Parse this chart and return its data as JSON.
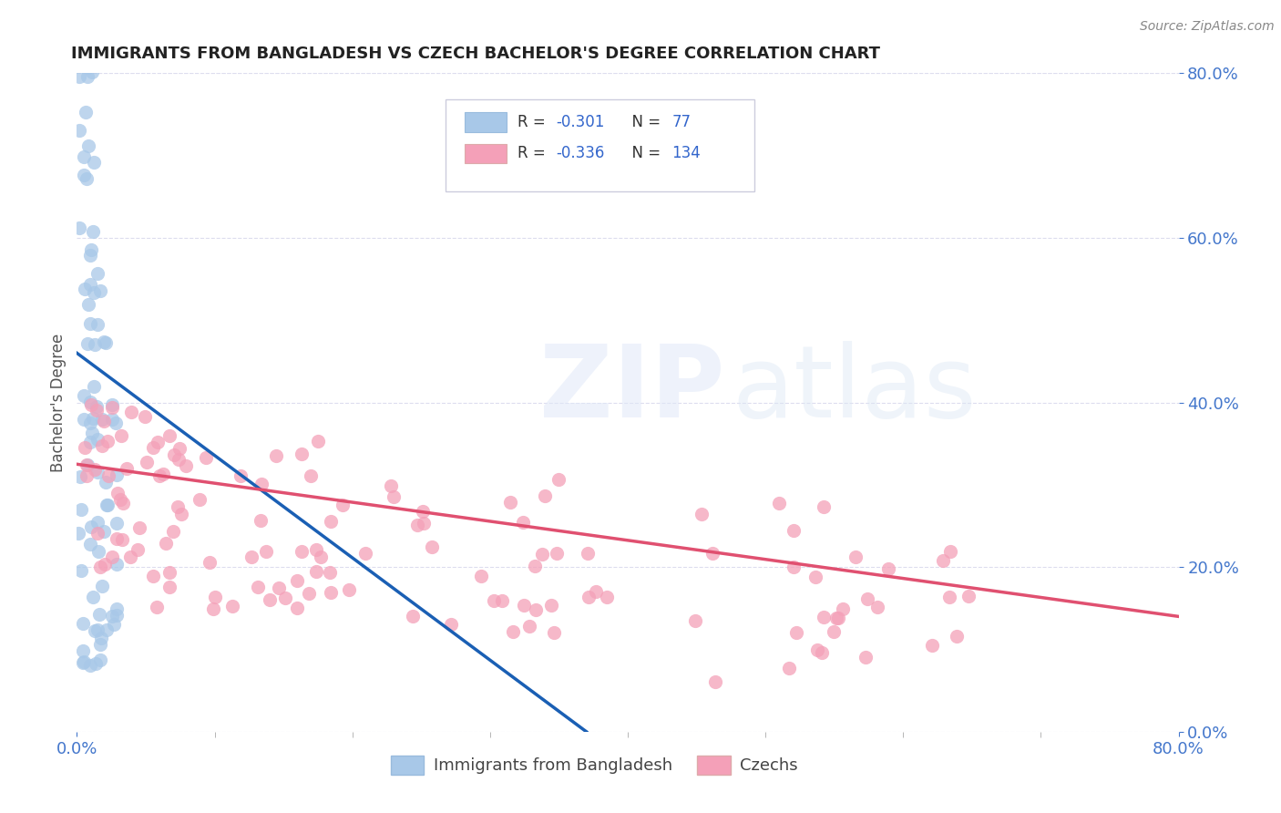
{
  "title": "IMMIGRANTS FROM BANGLADESH VS CZECH BACHELOR'S DEGREE CORRELATION CHART",
  "source": "Source: ZipAtlas.com",
  "ylabel": "Bachelor's Degree",
  "legend_labels": [
    "Immigrants from Bangladesh",
    "Czechs"
  ],
  "r_bangladesh": -0.301,
  "n_bangladesh": 77,
  "r_czech": -0.336,
  "n_czech": 134,
  "xlim": [
    0.0,
    0.8
  ],
  "ylim": [
    0.0,
    0.8
  ],
  "color_bangladesh": "#a8c8e8",
  "color_czech": "#f4a0b8",
  "line_color_bangladesh": "#1a5fb4",
  "line_color_czech": "#e05070",
  "dash_line_color": "#aaccee",
  "background_color": "#ffffff",
  "title_color": "#222222",
  "tick_color": "#4477cc",
  "ylabel_color": "#555555",
  "grid_color": "#ddddee",
  "source_color": "#888888"
}
